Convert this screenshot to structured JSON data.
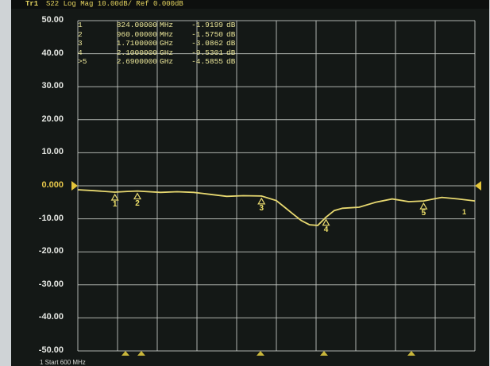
{
  "header": {
    "trace_id": "Tr1",
    "text": "S22 Log Mag 10.00dB/ Ref 0.000dB"
  },
  "y_axis_labels": [
    "50.00",
    "40.00",
    "30.00",
    "20.00",
    "10.00",
    "0.000",
    "-10.00",
    "-20.00",
    "-30.00",
    "-40.00",
    "-50.00"
  ],
  "markers": [
    {
      "id": "1",
      "freq": "824.00000",
      "unit": "MHz",
      "value": "-1.9199",
      "db": "dB"
    },
    {
      "id": "2",
      "freq": "960.00000",
      "unit": "MHz",
      "value": "-1.5750",
      "db": "dB"
    },
    {
      "id": "3",
      "freq": "1.7100000",
      "unit": "GHz",
      "value": "-3.0862",
      "db": "dB"
    },
    {
      "id": "4",
      "freq": "2.1000000",
      "unit": "GHz",
      "value": "-9.5301",
      "db": "dB"
    },
    {
      "id": ">5",
      "freq": "2.6900000",
      "unit": "GHz",
      "value": "-4.5855",
      "db": "dB"
    }
  ],
  "marker_labels": [
    "1",
    "2",
    "3",
    "4",
    "5"
  ],
  "trace_end_label": "1",
  "footer": {
    "start": "1  Start 600 MHz"
  },
  "colors": {
    "trace": "#e7d870",
    "grid": "#c9cdc9",
    "background": "#141816",
    "text": "#e4e6e2"
  },
  "chart_data": {
    "type": "line",
    "title": "S22 Log Mag 10.00dB/ Ref 0.000dB",
    "xlabel": "",
    "ylabel": "",
    "ylim": [
      -50,
      50
    ],
    "xlim": [
      600,
      3000
    ],
    "grid": true,
    "series": [
      {
        "x": [
          600,
          700,
          824,
          900,
          960,
          1100,
          1200,
          1300,
          1400,
          1500,
          1600,
          1710,
          1800,
          1850,
          1900,
          1950,
          2000,
          2050,
          2100,
          2150,
          2200,
          2300,
          2400,
          2500,
          2600,
          2690,
          2750,
          2800,
          2900,
          3000
        ],
        "y": [
          -1.2,
          -1.5,
          -1.92,
          -1.7,
          -1.58,
          -2.0,
          -1.8,
          -2.0,
          -2.6,
          -3.2,
          -3.0,
          -3.09,
          -4.5,
          -6.5,
          -8.5,
          -10.5,
          -11.8,
          -12.0,
          -9.53,
          -7.5,
          -6.8,
          -6.5,
          -5.0,
          -4.0,
          -4.8,
          -4.59,
          -4.0,
          -3.5,
          -4.0,
          -4.6
        ]
      }
    ]
  }
}
